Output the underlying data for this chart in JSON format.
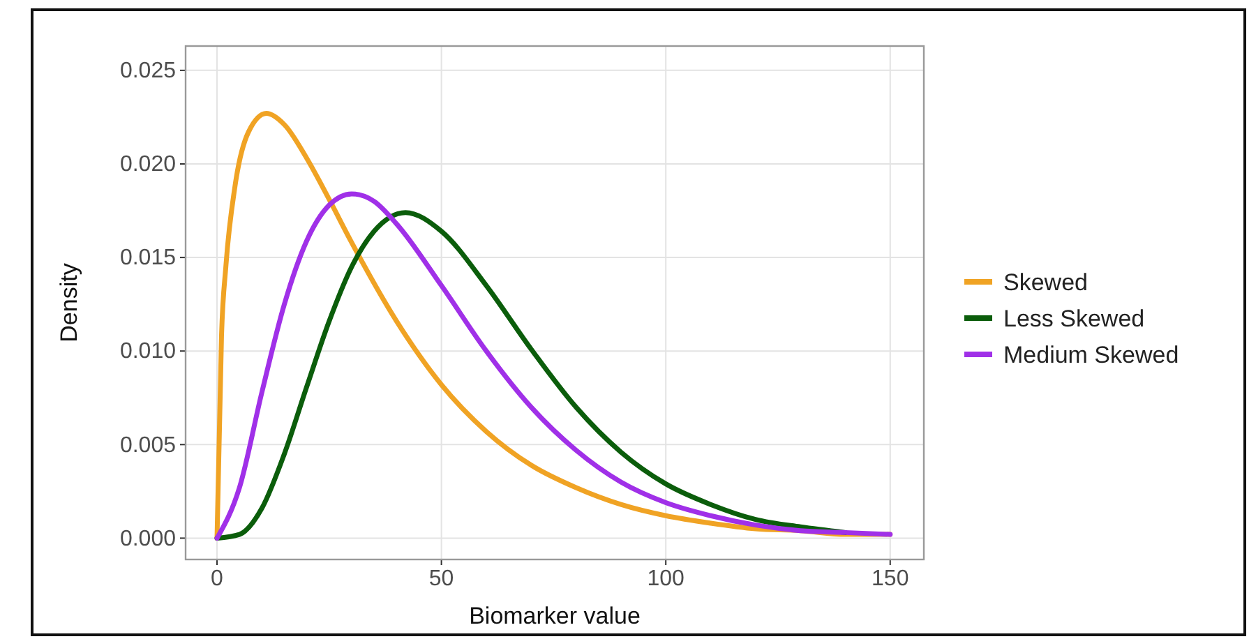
{
  "chart_data": {
    "type": "line",
    "xlabel": "Biomarker value",
    "ylabel": "Density",
    "xlim": [
      -7,
      157.5
    ],
    "ylim": [
      -0.00114,
      0.0263
    ],
    "xticks": [
      0,
      50,
      100,
      150
    ],
    "yticks": [
      {
        "value": 0,
        "label": "0.000"
      },
      {
        "value": 0.005,
        "label": "0.005"
      },
      {
        "value": 0.01,
        "label": "0.010"
      },
      {
        "value": 0.015,
        "label": "0.015"
      },
      {
        "value": 0.02,
        "label": "0.020"
      },
      {
        "value": 0.025,
        "label": "0.025"
      }
    ],
    "grid": true,
    "legend": "right",
    "marker": "none",
    "line_style": "solid",
    "series": [
      {
        "name": "Skewed",
        "color": "#f0a324",
        "x": [
          0,
          1,
          2,
          4,
          7,
          11,
          15,
          20,
          25,
          30,
          40,
          50,
          60,
          70,
          80,
          90,
          100,
          110,
          120,
          130,
          140,
          150
        ],
        "values": [
          0,
          0.0108,
          0.0146,
          0.0188,
          0.0217,
          0.0227,
          0.0221,
          0.0203,
          0.0181,
          0.0158,
          0.0116,
          0.0082,
          0.0057,
          0.0039,
          0.0027,
          0.0018,
          0.0012,
          0.0008,
          0.0005,
          0.0004,
          0.0002,
          0.0002
        ]
      },
      {
        "name": "Less Skewed",
        "color": "#0b5d0b",
        "x": [
          0,
          5,
          10,
          15,
          20,
          25,
          30,
          35,
          42,
          50,
          60,
          70,
          80,
          90,
          100,
          110,
          120,
          130,
          140
        ],
        "values": [
          0,
          0.0002,
          0.0016,
          0.0045,
          0.0081,
          0.0116,
          0.0145,
          0.0164,
          0.0174,
          0.0164,
          0.0135,
          0.0101,
          0.007,
          0.0046,
          0.0029,
          0.0018,
          0.001,
          0.0006,
          0.0003
        ]
      },
      {
        "name": "Medium Skewed",
        "color": "#a030e8",
        "x": [
          0,
          5,
          10,
          15,
          20,
          25,
          30,
          35,
          40,
          50,
          60,
          70,
          80,
          90,
          100,
          110,
          120,
          130,
          140,
          150
        ],
        "values": [
          0,
          0.0027,
          0.0078,
          0.0125,
          0.0159,
          0.0178,
          0.0184,
          0.018,
          0.0168,
          0.0135,
          0.01,
          0.007,
          0.0047,
          0.003,
          0.0019,
          0.0012,
          0.0007,
          0.0004,
          0.0003,
          0.0002
        ]
      }
    ]
  }
}
